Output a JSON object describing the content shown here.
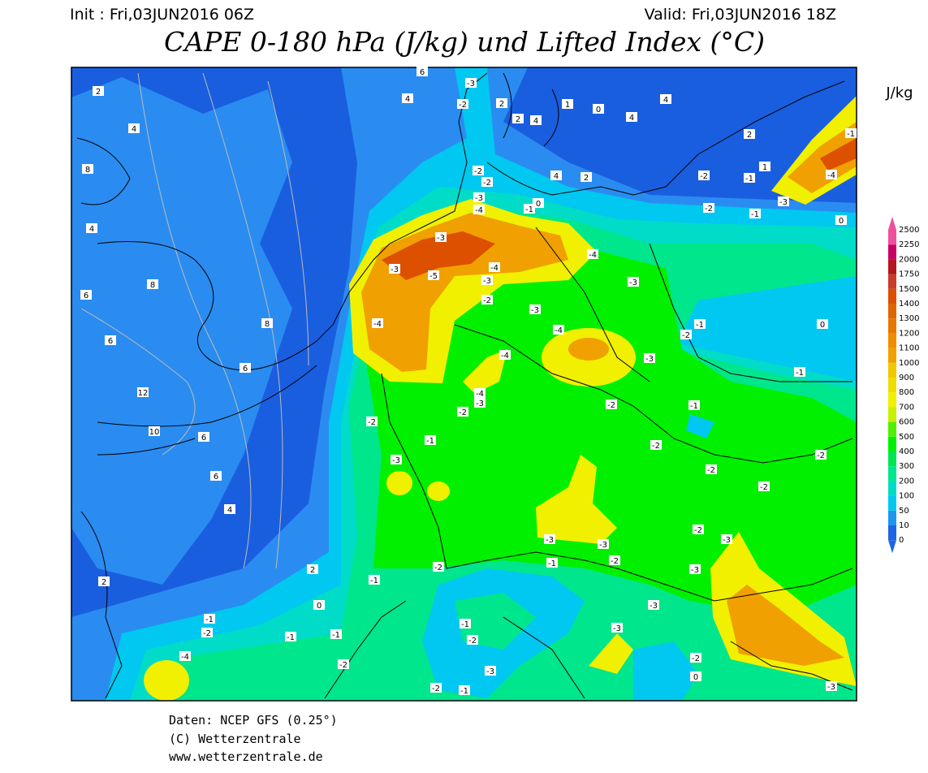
{
  "header": {
    "init": "Init : Fri,03JUN2016 06Z",
    "valid": "Valid: Fri,03JUN2016 18Z",
    "title": "CAPE 0-180 hPa (J/kg) und Lifted Index (°C)"
  },
  "colorbar": {
    "unit": "J/kg",
    "levels": [
      0,
      10,
      50,
      100,
      200,
      300,
      400,
      500,
      600,
      700,
      800,
      900,
      1000,
      1100,
      1200,
      1300,
      1400,
      1500,
      1750,
      2000,
      2250,
      2500
    ],
    "colors": [
      "#1e64e6",
      "#1e96f0",
      "#00c8f0",
      "#00dcc8",
      "#00e68c",
      "#00e650",
      "#00f000",
      "#50f000",
      "#c8f000",
      "#f0f000",
      "#f0dc00",
      "#f0c800",
      "#f0a000",
      "#f08c00",
      "#e67800",
      "#e06400",
      "#dc5000",
      "#c83c28",
      "#b4141e",
      "#c80064",
      "#f0509a"
    ]
  },
  "contour_labels": [
    "-3",
    "-2",
    "6",
    "4",
    "2",
    "4",
    "8",
    "4",
    "6",
    "8",
    "6",
    "8",
    "6",
    "12",
    "10",
    "6",
    "6",
    "4",
    "2",
    "2",
    "0",
    "-3",
    "-3",
    "-5",
    "-3",
    "-4",
    "-4",
    "-3",
    "-4",
    "-4",
    "-3",
    "-3",
    "-2",
    "-1",
    "0",
    "-1",
    "-1",
    "-2",
    "-2",
    "-2",
    "-2",
    "-2",
    "-2",
    "-3",
    "-3",
    "-3",
    "-3",
    "-3",
    "-3",
    "-2",
    "-1",
    "-2",
    "-1",
    "-1",
    "-1",
    "-1",
    "-2",
    "-4",
    "-2",
    "-1",
    "-2",
    "-3",
    "-2",
    "-1",
    "-2",
    "0",
    "-3",
    "-2",
    "-1",
    "-2",
    "-4",
    "-3",
    "-3",
    "-4",
    "-2",
    "-2",
    "-1",
    "1",
    "-3",
    "-1",
    "-4",
    "0",
    "-1",
    "2",
    "4",
    "4",
    "0",
    "1",
    "4",
    "4",
    "2",
    "2",
    "2",
    "-2",
    "-2",
    "-3",
    "-4",
    "-1",
    "0",
    "-2"
  ],
  "footer": {
    "lines": [
      "Daten: NCEP GFS (0.25°)",
      "(C) Wetterzentrale",
      "www.wetterzentrale.de"
    ]
  }
}
